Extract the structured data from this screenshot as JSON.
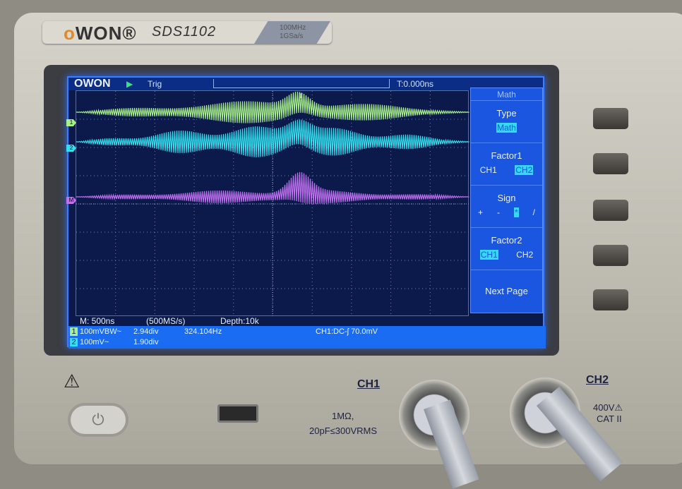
{
  "device": {
    "brand": "OWON",
    "model": "SDS1102",
    "spec_line1": "100MHz",
    "spec_line2": "1GSa/s"
  },
  "screen": {
    "logo": "OWON",
    "run_state": "Trig",
    "trigger_time": "T:0.000ns",
    "channels": [
      {
        "id": "1",
        "color": "#a8f08a"
      },
      {
        "id": "2",
        "color": "#34e0f0"
      },
      {
        "id": "M",
        "color": "#c070f0"
      }
    ],
    "menu": {
      "title": "Math",
      "type": {
        "label": "Type",
        "value": "Math"
      },
      "factor1": {
        "label": "Factor1",
        "options": [
          "CH1",
          "CH2"
        ],
        "selected": "CH2"
      },
      "sign": {
        "label": "Sign",
        "options": [
          "+",
          "-",
          "*",
          "/"
        ],
        "selected": "*"
      },
      "factor2": {
        "label": "Factor2",
        "options": [
          "CH1",
          "CH2"
        ],
        "selected": "CH1"
      },
      "next": "Next Page"
    },
    "status": {
      "timebase": "M: 500ns",
      "sample_rate": "(500MS/s)",
      "depth": "Depth:10k"
    },
    "ch1_info": {
      "num": "1",
      "scale": "100mVBW~",
      "offset": "2.94div",
      "freq": "324.104Hz"
    },
    "ch2_info": {
      "num": "2",
      "scale": "100mV~",
      "offset": "1.90div"
    },
    "trigger_info": "CH1:DC-ʃ 70.0mV"
  },
  "panel": {
    "ch1_label": "CH1",
    "ch1_spec1": "1MΩ,",
    "ch1_spec2": "20pF≤300VRMS",
    "ch2_label": "CH2",
    "ch2_spec1": "400V⚠",
    "ch2_spec2": "CAT II",
    "warning": "⚠"
  }
}
